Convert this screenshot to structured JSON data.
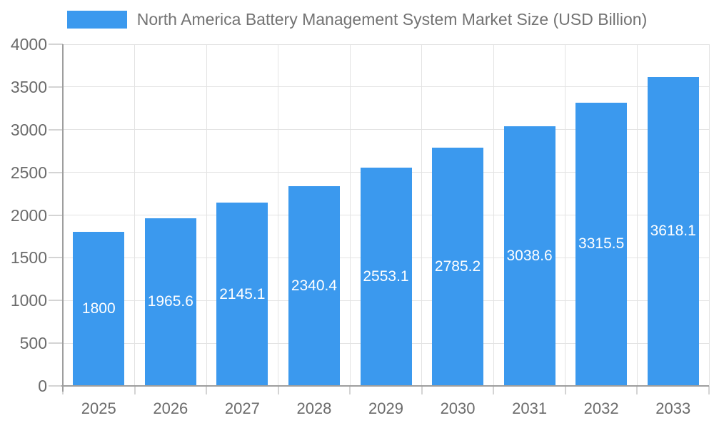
{
  "legend": {
    "label": "North America Battery Management System Market Size (USD Billion)"
  },
  "chart_data": {
    "type": "bar",
    "title": "North America Battery Management System Market Size (USD Billion)",
    "categories": [
      "2025",
      "2026",
      "2027",
      "2028",
      "2029",
      "2030",
      "2031",
      "2032",
      "2033"
    ],
    "values": [
      1800,
      1965.6,
      2145.1,
      2340.4,
      2553.1,
      2785.2,
      3038.6,
      3315.5,
      3618.1
    ],
    "bar_labels": [
      "1800",
      "1965.6",
      "2145.1",
      "2340.4",
      "2553.1",
      "2785.2",
      "3038.6",
      "3315.5",
      "3618.1"
    ],
    "xlabel": "",
    "ylabel": "",
    "ylim": [
      0,
      4000
    ],
    "yticks": [
      0,
      500,
      1000,
      1500,
      2000,
      2500,
      3000,
      3500,
      4000
    ],
    "grid": true,
    "legend_position": "top",
    "colors": {
      "bar": "#3b99ee",
      "grid": "#e3e3e3",
      "tick": "#d4d4d4",
      "axis": "#9e9e9e",
      "tick_label": "#6b6b6b",
      "bar_label": "#ffffff",
      "title": "#737373",
      "background": "#ffffff"
    }
  }
}
